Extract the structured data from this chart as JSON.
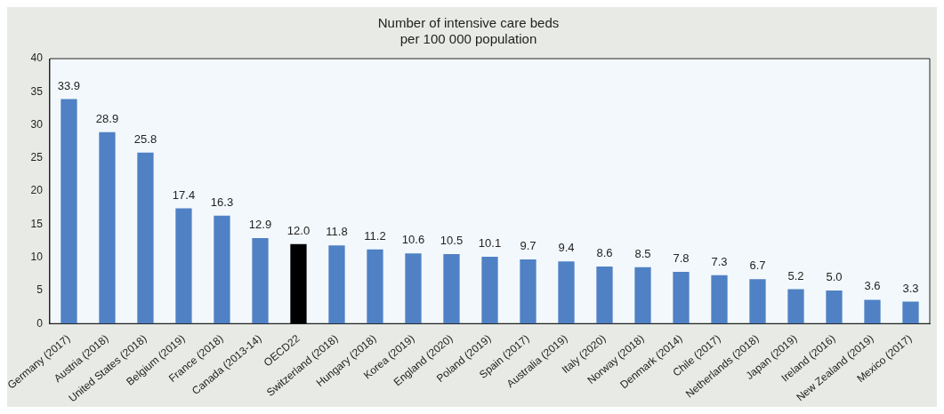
{
  "chart_data": {
    "type": "bar",
    "title": [
      "Number of intensive care beds",
      "per 100 000 population"
    ],
    "categories": [
      "Germany (2017)",
      "Austria (2018)",
      "United States (2018)",
      "Belgium (2019)",
      "France (2018)",
      "Canada (2013-14)",
      "OECD22",
      "Switzerland (2018)",
      "Hungary (2018)",
      "Korea (2019)",
      "England (2020)",
      "Poland (2019)",
      "Spain (2017)",
      "Australia (2019)",
      "Italy (2020)",
      "Norway (2018)",
      "Denmark (2014)",
      "Chile (2017)",
      "Netherlands (2018)",
      "Japan (2019)",
      "Ireland (2016)",
      "New Zealand (2019)",
      "Mexico (2017)"
    ],
    "values": [
      33.9,
      28.9,
      25.8,
      17.4,
      16.3,
      12.9,
      12.0,
      11.8,
      11.2,
      10.6,
      10.5,
      10.1,
      9.7,
      9.4,
      8.6,
      8.5,
      7.8,
      7.3,
      6.7,
      5.2,
      5.0,
      3.6,
      3.3
    ],
    "colors": [
      "#4f81c4",
      "#4f81c4",
      "#4f81c4",
      "#4f81c4",
      "#4f81c4",
      "#4f81c4",
      "#000000",
      "#4f81c4",
      "#4f81c4",
      "#4f81c4",
      "#4f81c4",
      "#4f81c4",
      "#4f81c4",
      "#4f81c4",
      "#4f81c4",
      "#4f81c4",
      "#4f81c4",
      "#4f81c4",
      "#4f81c4",
      "#4f81c4",
      "#4f81c4",
      "#4f81c4",
      "#4f81c4"
    ],
    "value_labels": [
      "33.9",
      "28.9",
      "25.8",
      "17.4",
      "16.3",
      "12.9",
      "12.0",
      "11.8",
      "11.2",
      "10.6",
      "10.5",
      "10.1",
      "9.7",
      "9.4",
      "8.6",
      "8.5",
      "7.8",
      "7.3",
      "6.7",
      "5.2",
      "5.0",
      "3.6",
      "3.3"
    ],
    "ylim": [
      0,
      40
    ],
    "yticks": [
      0,
      5,
      10,
      15,
      20,
      25,
      30,
      35,
      40
    ],
    "grid": false,
    "legend": false
  }
}
